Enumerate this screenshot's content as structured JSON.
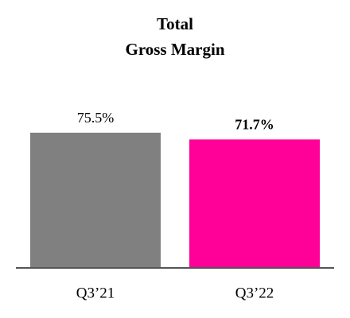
{
  "chart_data": {
    "type": "bar",
    "title": [
      "Total",
      "Gross Margin"
    ],
    "categories": [
      "Q3’21",
      "Q3’22"
    ],
    "values": [
      75.5,
      71.7
    ],
    "value_labels": [
      "75.5%",
      "71.7%"
    ],
    "colors": [
      "#808080",
      "#ff0099"
    ]
  }
}
